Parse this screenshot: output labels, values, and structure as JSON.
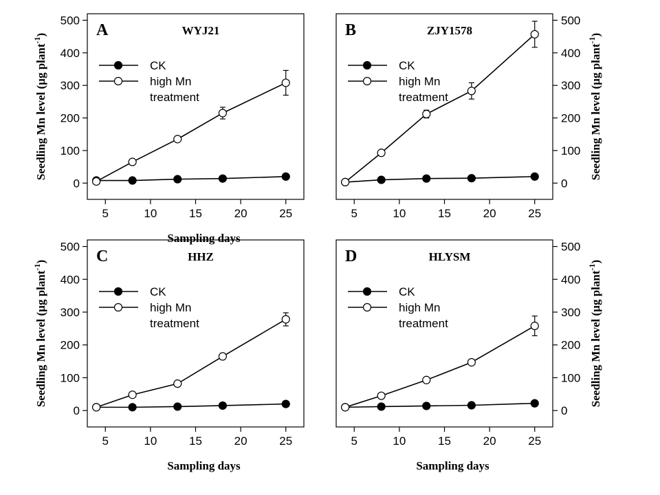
{
  "chart_data": [
    {
      "type": "line",
      "panel": "A",
      "title": "WYJ21",
      "xlabel": "Sampling days",
      "ylabel": "Seedling Mn level (µg plant",
      "ylabel_sup": "-1",
      "ylabel_tail": ")",
      "xlim": [
        3,
        27
      ],
      "ylim": [
        -50,
        520
      ],
      "xticks": [
        5,
        10,
        15,
        20,
        25
      ],
      "yticks": [
        0,
        100,
        200,
        300,
        400,
        500
      ],
      "legend": [
        "CK",
        "high Mn",
        "treatment"
      ],
      "series": [
        {
          "name": "CK",
          "marker": "filled",
          "x": [
            4,
            8,
            13,
            18,
            25
          ],
          "values": [
            8,
            8,
            12,
            14,
            20
          ],
          "errors": [
            0,
            0,
            0,
            0,
            0
          ]
        },
        {
          "name": "high Mn treatment",
          "marker": "open",
          "x": [
            4,
            8,
            13,
            18,
            25
          ],
          "values": [
            5,
            65,
            135,
            215,
            308
          ],
          "errors": [
            0,
            5,
            8,
            18,
            38
          ]
        }
      ]
    },
    {
      "type": "line",
      "panel": "B",
      "title": "ZJY1578",
      "xlabel": "",
      "ylabel": "Seedling Mn level (µg plant",
      "ylabel_sup": "-1",
      "ylabel_tail": ")",
      "xlim": [
        3,
        27
      ],
      "ylim": [
        -50,
        520
      ],
      "xticks": [
        5,
        10,
        15,
        20,
        25
      ],
      "yticks": [
        0,
        100,
        200,
        300,
        400,
        500
      ],
      "legend": [
        "CK",
        "high Mn",
        "treatment"
      ],
      "series": [
        {
          "name": "CK",
          "marker": "filled",
          "x": [
            4,
            8,
            13,
            18,
            25
          ],
          "values": [
            3,
            10,
            14,
            15,
            20
          ],
          "errors": [
            0,
            0,
            0,
            0,
            0
          ]
        },
        {
          "name": "high Mn treatment",
          "marker": "open",
          "x": [
            4,
            8,
            13,
            18,
            25
          ],
          "values": [
            3,
            93,
            212,
            283,
            457
          ],
          "errors": [
            0,
            5,
            12,
            25,
            40
          ]
        }
      ]
    },
    {
      "type": "line",
      "panel": "C",
      "title": "HHZ",
      "xlabel": "Sampling days",
      "ylabel": "Seedling Mn level (µg plant",
      "ylabel_sup": "-1",
      "ylabel_tail": ")",
      "xlim": [
        3,
        27
      ],
      "ylim": [
        -50,
        520
      ],
      "xticks": [
        5,
        10,
        15,
        20,
        25
      ],
      "yticks": [
        0,
        100,
        200,
        300,
        400,
        500
      ],
      "legend": [
        "CK",
        "high Mn",
        "treatment"
      ],
      "series": [
        {
          "name": "CK",
          "marker": "filled",
          "x": [
            4,
            8,
            13,
            18,
            25
          ],
          "values": [
            10,
            10,
            12,
            15,
            20
          ],
          "errors": [
            0,
            0,
            0,
            0,
            0
          ]
        },
        {
          "name": "high Mn treatment",
          "marker": "open",
          "x": [
            4,
            8,
            13,
            18,
            25
          ],
          "values": [
            10,
            48,
            82,
            165,
            278
          ],
          "errors": [
            0,
            5,
            5,
            8,
            20
          ]
        }
      ]
    },
    {
      "type": "line",
      "panel": "D",
      "title": "HLYSM",
      "xlabel": "Sampling days",
      "ylabel": "Seedling Mn level (µg plant",
      "ylabel_sup": "-1",
      "ylabel_tail": ")",
      "xlim": [
        3,
        27
      ],
      "ylim": [
        -50,
        520
      ],
      "xticks": [
        5,
        10,
        15,
        20,
        25
      ],
      "yticks": [
        0,
        100,
        200,
        300,
        400,
        500
      ],
      "legend": [
        "CK",
        "high Mn",
        "treatment"
      ],
      "series": [
        {
          "name": "CK",
          "marker": "filled",
          "x": [
            4,
            8,
            13,
            18,
            25
          ],
          "values": [
            10,
            12,
            14,
            16,
            22
          ],
          "errors": [
            0,
            0,
            0,
            0,
            0
          ]
        },
        {
          "name": "high Mn treatment",
          "marker": "open",
          "x": [
            4,
            8,
            13,
            18,
            25
          ],
          "values": [
            10,
            45,
            93,
            147,
            258
          ],
          "errors": [
            0,
            5,
            8,
            8,
            30
          ]
        }
      ]
    }
  ]
}
